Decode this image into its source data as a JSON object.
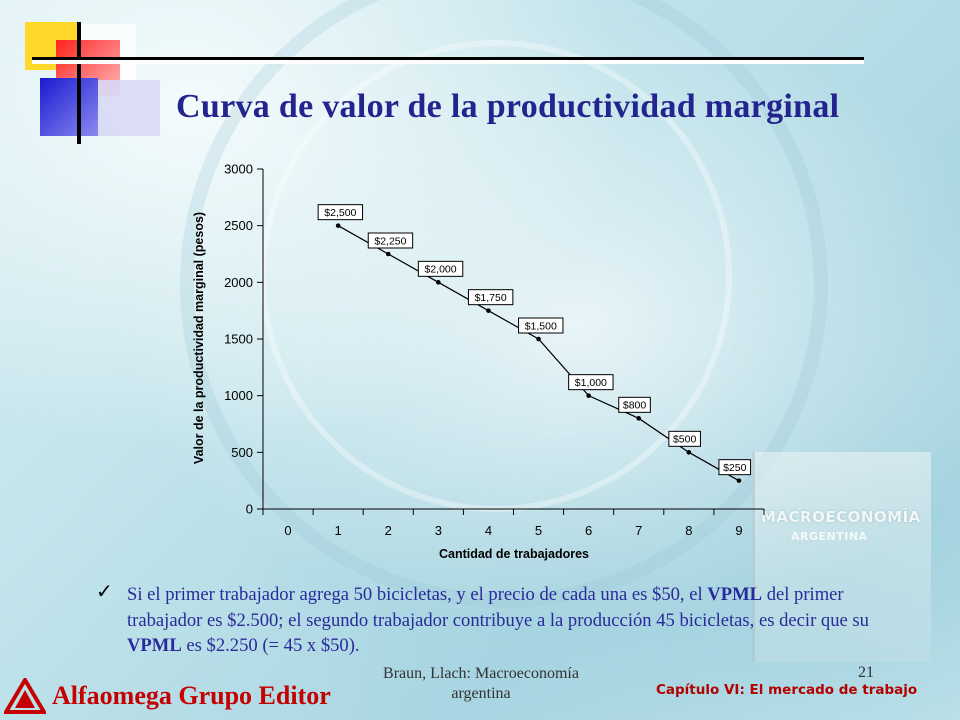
{
  "slide": {
    "title": "Curva de valor de la productividad marginal",
    "bullet_parts": [
      "Si el primer trabajador agrega 50 bicicletas, y el precio de cada una es $50, el ",
      "VPML",
      " del primer trabajador es $2.500; el segundo trabajador contribuye a la producción 45 bicicletas, es decir que su ",
      "VPML",
      " es $2.250 (= 45 x $50)."
    ],
    "footer_line1": "Braun, Llach: Macroeconomía",
    "footer_line2": "argentina",
    "page_number": "21",
    "chapter": "Capítulo VI: El mercado de trabajo",
    "publisher": "Alfaomega Grupo Editor",
    "book_title": "MACROECONOMÍA",
    "book_subtitle": "ARGENTINA"
  },
  "colors": {
    "title": "#24248f",
    "bullet_text": "#2a2a9a",
    "chapter": "#b30000",
    "publisher": "#c40000"
  },
  "chart_data": {
    "type": "line",
    "xlabel": "Cantidad de trabajadores",
    "ylabel": "Valor de la productividad marginal (pesos)",
    "x_ticks": [
      "0",
      "1",
      "2",
      "3",
      "4",
      "5",
      "6",
      "7",
      "8",
      "9"
    ],
    "y_ticks": [
      "0",
      "500",
      "1000",
      "1500",
      "2000",
      "2500",
      "3000"
    ],
    "ylim": [
      0,
      3000
    ],
    "grid": false,
    "series": [
      {
        "x": [
          1,
          2,
          3,
          4,
          5,
          6,
          7,
          8,
          9
        ],
        "y": [
          2500,
          2250,
          2000,
          1750,
          1500,
          1000,
          800,
          500,
          250
        ],
        "labels": [
          "$2,500",
          "$2,250",
          "$2,000",
          "$1,750",
          "$1,500",
          "$1,000",
          "$800",
          "$500",
          "$250"
        ]
      }
    ]
  }
}
